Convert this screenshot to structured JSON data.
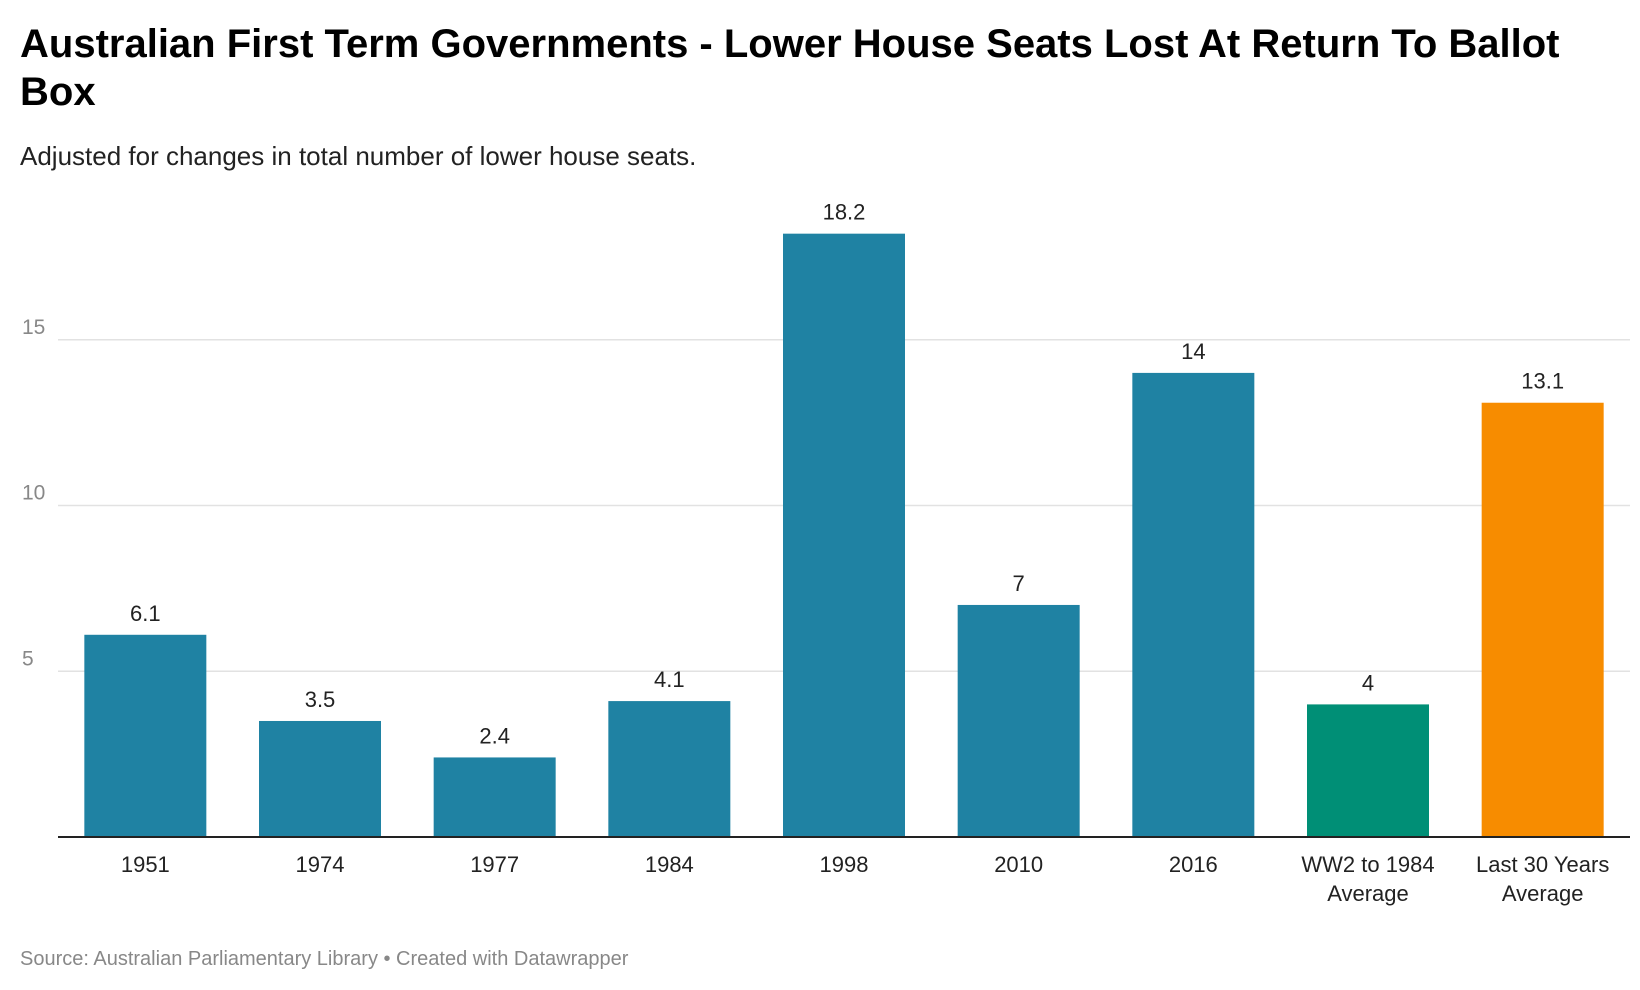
{
  "header": {
    "title": "Australian First Term Governments - Lower House Seats Lost At Return To Ballot Box",
    "subtitle": "Adjusted for changes in total number of lower house seats."
  },
  "footer": {
    "source": "Source: Australian Parliamentary Library • Created with Datawrapper"
  },
  "chart_data": {
    "type": "bar",
    "title": "Australian First Term Governments - Lower House Seats Lost At Return To Ballot Box",
    "subtitle": "Adjusted for changes in total number of lower house seats.",
    "categories": [
      [
        "1951"
      ],
      [
        "1974"
      ],
      [
        "1977"
      ],
      [
        "1984"
      ],
      [
        "1998"
      ],
      [
        "2010"
      ],
      [
        "2016"
      ],
      [
        "WW2 to 1984",
        "Average"
      ],
      [
        "Last 30 Years",
        "Average"
      ]
    ],
    "values": [
      6.1,
      3.5,
      2.4,
      4.1,
      18.2,
      7,
      14,
      4,
      13.1
    ],
    "value_labels": [
      "6.1",
      "3.5",
      "2.4",
      "4.1",
      "18.2",
      "7",
      "14",
      "4",
      "13.1"
    ],
    "colors": [
      "#1f82a3",
      "#1f82a3",
      "#1f82a3",
      "#1f82a3",
      "#1f82a3",
      "#1f82a3",
      "#1f82a3",
      "#008f76",
      "#f78c00"
    ],
    "yticks": [
      5,
      10,
      15
    ],
    "ylim": [
      0,
      19.5
    ],
    "grid": true,
    "legend": "none"
  }
}
